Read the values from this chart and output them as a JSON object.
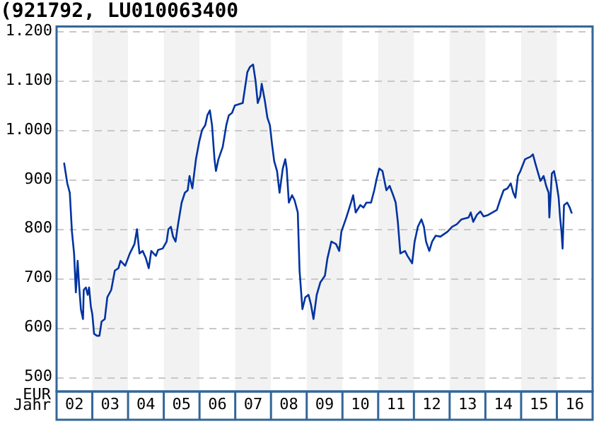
{
  "chart_data": {
    "type": "line",
    "title": "(921792, LU010063400",
    "xlabel": "Jahr",
    "ylabel": "EUR",
    "xlim": [
      1.5,
      16.5
    ],
    "ylim": [
      470,
      1210
    ],
    "xticks": [
      {
        "value": 2,
        "label": "02"
      },
      {
        "value": 3,
        "label": "03"
      },
      {
        "value": 4,
        "label": "04"
      },
      {
        "value": 5,
        "label": "05"
      },
      {
        "value": 6,
        "label": "06"
      },
      {
        "value": 7,
        "label": "07"
      },
      {
        "value": 8,
        "label": "08"
      },
      {
        "value": 9,
        "label": "09"
      },
      10,
      11,
      12,
      13,
      14,
      15,
      16
    ],
    "yticks": [
      500,
      600,
      700,
      800,
      900,
      {
        "value": 1000,
        "label": "1.000"
      },
      {
        "value": 1100,
        "label": "1.100"
      },
      {
        "value": 1200,
        "label": "1.200"
      }
    ],
    "grid": "y",
    "legend": false,
    "marker": "none",
    "line_style": "solid",
    "bands": [
      {
        "axis": "x",
        "from": 2.5,
        "to": 3.5,
        "color": "#f2f2f2"
      },
      {
        "axis": "x",
        "from": 4.5,
        "to": 5.5,
        "color": "#f2f2f2"
      },
      {
        "axis": "x",
        "from": 6.5,
        "to": 7.5,
        "color": "#f2f2f2"
      },
      {
        "axis": "x",
        "from": 8.5,
        "to": 9.5,
        "color": "#f2f2f2"
      },
      {
        "axis": "x",
        "from": 10.5,
        "to": 11.5,
        "color": "#f2f2f2"
      },
      {
        "axis": "x",
        "from": 12.5,
        "to": 13.5,
        "color": "#f2f2f2"
      },
      {
        "axis": "x",
        "from": 14.5,
        "to": 15.5,
        "color": "#f2f2f2"
      }
    ],
    "series": [
      {
        "color": "#0033a0",
        "x": [
          1.71,
          1.8,
          1.87,
          1.93,
          1.99,
          2.04,
          2.09,
          2.13,
          2.18,
          2.24,
          2.26,
          2.32,
          2.37,
          2.41,
          2.46,
          2.5,
          2.55,
          2.63,
          2.7,
          2.76,
          2.85,
          2.92,
          3.03,
          3.13,
          3.23,
          3.29,
          3.42,
          3.55,
          3.68,
          3.75,
          3.82,
          3.91,
          4.0,
          4.08,
          4.15,
          4.28,
          4.34,
          4.47,
          4.58,
          4.63,
          4.7,
          4.76,
          4.83,
          4.9,
          5.0,
          5.09,
          5.17,
          5.22,
          5.3,
          5.4,
          5.49,
          5.57,
          5.66,
          5.72,
          5.79,
          5.85,
          5.92,
          5.96,
          6.03,
          6.15,
          6.25,
          6.32,
          6.41,
          6.49,
          6.71,
          6.78,
          6.84,
          6.91,
          7.0,
          7.07,
          7.13,
          7.2,
          7.24,
          7.33,
          7.4,
          7.47,
          7.53,
          7.59,
          7.67,
          7.74,
          7.83,
          7.9,
          7.94,
          8.0,
          8.09,
          8.16,
          8.25,
          8.3,
          8.38,
          8.46,
          8.55,
          8.62,
          8.69,
          8.78,
          8.88,
          9.01,
          9.08,
          9.19,
          9.32,
          9.41,
          9.47,
          9.61,
          9.74,
          9.8,
          9.87,
          10.0,
          10.09,
          10.17,
          10.3,
          10.39,
          10.46,
          10.53,
          10.62,
          10.73,
          10.82,
          10.92,
          10.99,
          11.05,
          11.12,
          11.25,
          11.32,
          11.45,
          11.52,
          11.61,
          11.71,
          11.78,
          11.84,
          11.93,
          12.01,
          12.11,
          12.24,
          12.44,
          12.57,
          12.7,
          12.83,
          13.03,
          13.09,
          13.16,
          13.26,
          13.36,
          13.45,
          13.58,
          13.82,
          13.91,
          14.01,
          14.12,
          14.21,
          14.28,
          14.34,
          14.41,
          14.48,
          14.61,
          14.67,
          14.76,
          14.83,
          14.9,
          14.96,
          15.04,
          15.13,
          15.2,
          15.27,
          15.29,
          15.36,
          15.42,
          15.49,
          15.55,
          15.59,
          15.63,
          15.66,
          15.7,
          15.79,
          15.86,
          15.92
        ],
        "values": [
          934,
          892,
          873,
          794,
          750,
          671,
          735,
          686,
          637,
          617,
          676,
          681,
          666,
          681,
          642,
          627,
          587,
          583,
          583,
          612,
          617,
          661,
          676,
          715,
          720,
          735,
          725,
          750,
          769,
          799,
          750,
          755,
          740,
          720,
          755,
          745,
          757,
          760,
          774,
          799,
          804,
          784,
          774,
          809,
          853,
          873,
          878,
          907,
          882,
          941,
          976,
          1000,
          1010,
          1030,
          1040,
          1010,
          941,
          917,
          941,
          966,
          1010,
          1030,
          1035,
          1050,
          1055,
          1089,
          1118,
          1128,
          1133,
          1099,
          1055,
          1069,
          1094,
          1059,
          1025,
          1010,
          971,
          937,
          917,
          873,
          922,
          941,
          922,
          853,
          868,
          858,
          833,
          715,
          637,
          661,
          666,
          646,
          617,
          666,
          691,
          705,
          740,
          774,
          769,
          755,
          794,
          823,
          853,
          868,
          833,
          848,
          843,
          853,
          853,
          878,
          902,
          922,
          917,
          878,
          887,
          868,
          853,
          814,
          750,
          755,
          745,
          730,
          774,
          804,
          819,
          804,
          774,
          755,
          774,
          786,
          784,
          794,
          804,
          809,
          819,
          823,
          833,
          814,
          828,
          835,
          825,
          828,
          838,
          858,
          878,
          882,
          892,
          873,
          863,
          907,
          917,
          941,
          943,
          946,
          951,
          932,
          917,
          897,
          907,
          887,
          873,
          823,
          912,
          917,
          892,
          863,
          823,
          794,
          760,
          848,
          853,
          843,
          831
        ]
      }
    ]
  }
}
